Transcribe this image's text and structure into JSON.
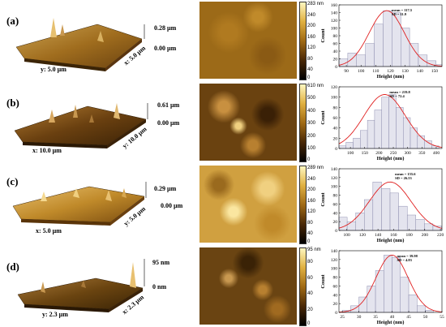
{
  "panels": [
    {
      "label": "(a)",
      "surface": {
        "z_top": "0.28 µm",
        "z_bottom": "0.00 µm",
        "axis_a": "y: 5.0 µm",
        "axis_b": "x: 5.0 µm"
      },
      "colorbar": {
        "max_label": "283 nm",
        "ticks": [
          "240",
          "200",
          "160",
          "120",
          "80",
          "40",
          "0"
        ]
      }
    },
    {
      "label": "(b)",
      "surface": {
        "z_top": "0.61 µm",
        "z_bottom": "0.00 µm",
        "axis_a": "x: 10.0 µm",
        "axis_b": "y: 10.0 µm"
      },
      "colorbar": {
        "max_label": "610 nm",
        "ticks": [
          "500",
          "400",
          "300",
          "200",
          "100",
          "0"
        ]
      }
    },
    {
      "label": "(c)",
      "surface": {
        "z_top": "0.29 µm",
        "z_bottom": "0.00 µm",
        "axis_a": "x: 5.0 µm",
        "axis_b": "y: 5.0 µm"
      },
      "colorbar": {
        "max_label": "289 nm",
        "ticks": [
          "240",
          "200",
          "160",
          "120",
          "80",
          "40",
          "0"
        ]
      }
    },
    {
      "label": "(d)",
      "surface": {
        "z_top": "95 nm",
        "z_bottom": "0 nm",
        "axis_a": "y: 2.3 µm",
        "axis_b": "x: 2.3 µm"
      },
      "colorbar": {
        "max_label": "95 nm",
        "ticks": [
          "80",
          "60",
          "40",
          "20",
          "0"
        ]
      }
    }
  ],
  "chart_data": [
    {
      "type": "bar",
      "xlabel": "Height (nm)",
      "ylabel": "Count",
      "xlim": [
        85,
        155
      ],
      "ylim": [
        0,
        160
      ],
      "xticks": [
        90,
        100,
        110,
        120,
        130,
        140,
        150
      ],
      "yticks": [
        0,
        20,
        40,
        60,
        80,
        100,
        120,
        140,
        160
      ],
      "bin_width": 6,
      "x": [
        88,
        94,
        100,
        106,
        112,
        118,
        124,
        130,
        136,
        142,
        148,
        154
      ],
      "values": [
        20,
        35,
        30,
        60,
        110,
        145,
        140,
        100,
        60,
        30,
        15,
        5
      ],
      "fit": {
        "mean": 117.5,
        "sd": 11.9
      },
      "annotation": [
        "mean = 117.5",
        "SD = 11.9"
      ]
    },
    {
      "type": "bar",
      "xlabel": "Height (nm)",
      "ylabel": "Count",
      "xlim": [
        60,
        420
      ],
      "ylim": [
        0,
        120
      ],
      "xticks": [
        100,
        150,
        200,
        250,
        300,
        350,
        400
      ],
      "yticks": [
        0,
        20,
        40,
        60,
        80,
        100,
        120
      ],
      "bin_width": 25,
      "x": [
        72,
        97,
        122,
        147,
        172,
        197,
        222,
        247,
        272,
        297,
        322,
        347,
        372,
        397
      ],
      "values": [
        5,
        12,
        20,
        35,
        55,
        75,
        100,
        105,
        80,
        60,
        40,
        25,
        15,
        5
      ],
      "fit": {
        "mean": 219.8,
        "sd": 72.4
      },
      "annotation": [
        "mean = 219.8",
        "SD = 72.4"
      ]
    },
    {
      "type": "bar",
      "xlabel": "Height (nm)",
      "ylabel": "Count",
      "xlim": [
        90,
        222
      ],
      "ylim": [
        0,
        140
      ],
      "xticks": [
        100,
        120,
        140,
        160,
        180,
        200,
        220
      ],
      "yticks": [
        0,
        20,
        40,
        60,
        80,
        100,
        120,
        140
      ],
      "bin_width": 11,
      "x": [
        95,
        106,
        117,
        128,
        139,
        150,
        161,
        172,
        183,
        194,
        205,
        216
      ],
      "values": [
        30,
        20,
        40,
        70,
        110,
        95,
        85,
        55,
        35,
        25,
        15,
        10
      ],
      "fit": {
        "mean": 155.6,
        "sd": 26.53
      },
      "annotation": [
        "mean = 155.6",
        "SD = 26.53"
      ]
    },
    {
      "type": "bar",
      "xlabel": "Height (nm)",
      "ylabel": "Count",
      "xlim": [
        24,
        55
      ],
      "ylim": [
        0,
        140
      ],
      "xticks": [
        25,
        30,
        35,
        40,
        45,
        50,
        55
      ],
      "yticks": [
        0,
        20,
        40,
        60,
        80,
        100,
        120,
        140
      ],
      "bin_width": 2.5,
      "x": [
        26.25,
        28.75,
        31.25,
        33.75,
        36.25,
        38.75,
        41.25,
        43.75,
        46.25,
        48.75,
        51.25
      ],
      "values": [
        5,
        15,
        35,
        60,
        95,
        130,
        125,
        80,
        40,
        15,
        5
      ],
      "fit": {
        "mean": 39.98,
        "sd": 4.83
      },
      "annotation": [
        "mean = 39.98",
        "SD = 4.83"
      ]
    }
  ]
}
